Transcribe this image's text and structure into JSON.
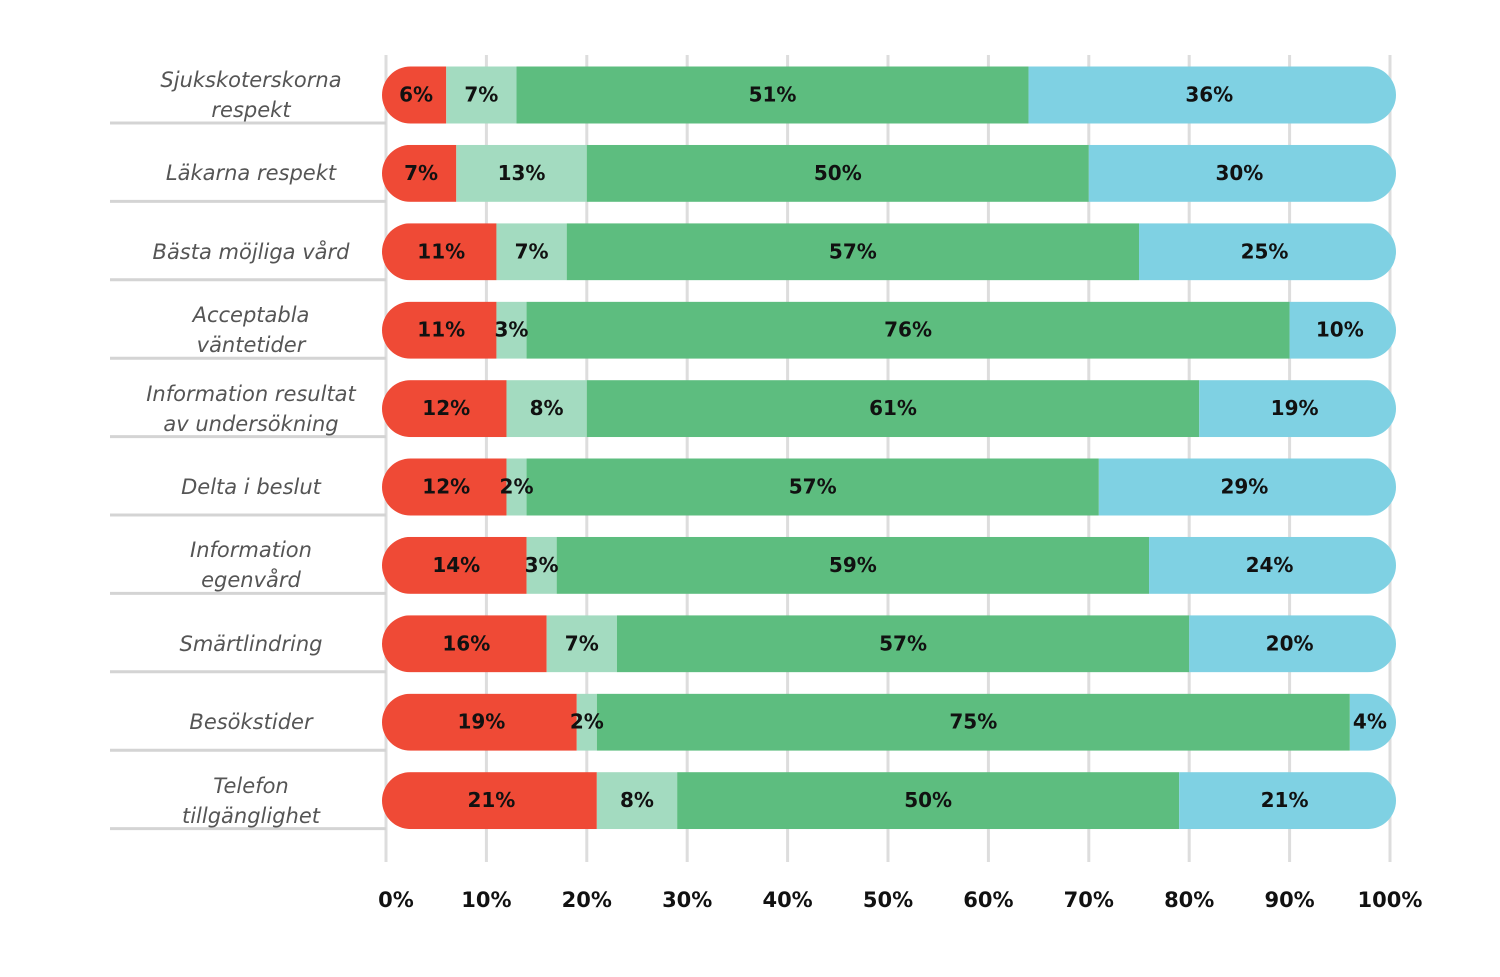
{
  "chart_data": {
    "type": "stacked-bar",
    "categories": [
      "Sjukskoterskorna\nrespekt",
      "Läkarna respekt",
      "Bästa möjliga vård",
      "Acceptabla\nväntetider",
      "Information resultat\nav undersökning",
      "Delta i beslut",
      "Information\negenvård",
      "Smärtlindring",
      "Besökstider",
      "Telefon\ntillgänglighet"
    ],
    "series": [
      {
        "color": "#ef4a36",
        "values": [
          6,
          7,
          11,
          11,
          12,
          12,
          14,
          16,
          19,
          21
        ],
        "value_labels": [
          "6%",
          "7%",
          "11%",
          "11%",
          "12%",
          "12%",
          "14%",
          "16%",
          "19%",
          "21%"
        ]
      },
      {
        "color": "#a3dbc0",
        "values": [
          7,
          13,
          7,
          3,
          8,
          2,
          3,
          7,
          2,
          8
        ],
        "value_labels": [
          "7%",
          "13%",
          "7%",
          "3%",
          "8%",
          "2%",
          "3%",
          "7%",
          "2%",
          "8%"
        ]
      },
      {
        "color": "#5dbd7f",
        "values": [
          51,
          50,
          57,
          76,
          61,
          57,
          59,
          57,
          75,
          50
        ],
        "value_labels": [
          "51%",
          "50%",
          "57%",
          "76%",
          "61%",
          "57%",
          "59%",
          "57%",
          "75%",
          "50%"
        ]
      },
      {
        "color": "#7fd1e3",
        "values": [
          36,
          30,
          25,
          10,
          19,
          29,
          24,
          20,
          4,
          21
        ],
        "value_labels": [
          "36%",
          "30%",
          "25%",
          "10%",
          "19%",
          "29%",
          "24%",
          "20%",
          "4%",
          "21%"
        ]
      }
    ],
    "xlim": [
      0,
      100
    ],
    "xticks": [
      {
        "value": 0,
        "label": "0%"
      },
      {
        "value": 10,
        "label": "10%"
      },
      {
        "value": 20,
        "label": "20%"
      },
      {
        "value": 30,
        "label": "30%"
      },
      {
        "value": 40,
        "label": "40%"
      },
      {
        "value": 50,
        "label": "50%"
      },
      {
        "value": 60,
        "label": "60%"
      },
      {
        "value": 70,
        "label": "70%"
      },
      {
        "value": 80,
        "label": "80%"
      },
      {
        "value": 90,
        "label": "90%"
      },
      {
        "value": 100,
        "label": "100%"
      }
    ],
    "grid": true
  }
}
